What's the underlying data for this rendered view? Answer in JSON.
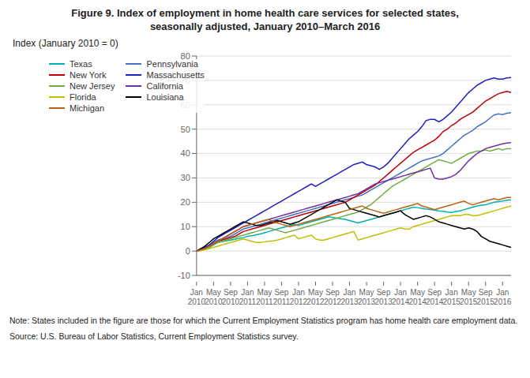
{
  "chart_data": {
    "type": "line",
    "title": "Figure 9. Index of employment in home health care services for selected states,",
    "subtitle": "seasonally adjusted, January 2010–March 2016",
    "ylabel": "Index (January 2010 = 0)",
    "annotations": [
      "Note: States included in the figure are those for which the Current Employment Statistics program has home health care employment data.",
      "Source: U.S. Bureau of Labor Statistics, Current Employment Statistics survey."
    ],
    "categories": [
      "Jan 2010",
      null,
      null,
      null,
      "May 2010",
      null,
      null,
      null,
      "Sep 2010",
      null,
      null,
      null,
      "Jan 2011",
      null,
      null,
      null,
      "May 2011",
      null,
      null,
      null,
      "Sep 2011",
      null,
      null,
      null,
      "Jan 2012",
      null,
      null,
      null,
      "May 2012",
      null,
      null,
      null,
      "Sep 2012",
      null,
      null,
      null,
      "Jan 2013",
      null,
      null,
      null,
      "May 2013",
      null,
      null,
      null,
      "Sep 2013",
      null,
      null,
      null,
      "Jan 2014",
      null,
      null,
      null,
      "May 2014",
      null,
      null,
      null,
      "Sep 2014",
      null,
      null,
      null,
      "Jan 2015",
      null,
      null,
      null,
      "May 2015",
      null,
      null,
      null,
      "Sep 2015",
      null,
      null,
      null,
      "Jan 2016",
      null,
      null
    ],
    "ylim": [
      -10,
      80
    ],
    "yticks": [
      -10,
      0,
      10,
      20,
      30,
      40,
      50,
      60,
      70,
      80
    ],
    "grid": true,
    "legend": "upper left",
    "series": [
      {
        "name": "Texas",
        "color": "#00b0b0",
        "values": [
          0.0,
          0.5,
          1.0,
          1.5,
          2.5,
          3.5,
          3.8,
          4.2,
          4.5,
          4.8,
          5.2,
          5.5,
          6.0,
          6.3,
          6.7,
          7.0,
          7.5,
          8.0,
          8.5,
          9.0,
          9.5,
          10.0,
          10.5,
          11.0,
          10.5,
          11.0,
          11.5,
          12.0,
          12.5,
          13.0,
          13.5,
          14.0,
          13.8,
          13.5,
          13.2,
          13.0,
          12.5,
          12.0,
          11.5,
          12.0,
          12.5,
          13.0,
          13.5,
          14.0,
          14.5,
          15.0,
          15.5,
          16.0,
          16.5,
          17.0,
          17.5,
          18.0,
          17.8,
          17.5,
          17.2,
          17.0,
          16.8,
          16.5,
          16.3,
          16.0,
          15.8,
          16.2,
          16.5,
          17.0,
          17.5,
          18.0,
          18.5,
          18.8,
          19.0,
          19.5,
          20.0,
          20.3,
          20.5,
          20.8,
          21.0
        ]
      },
      {
        "name": "Pennsylvania",
        "color": "#4472c4",
        "values": [
          0.0,
          0.5,
          1.0,
          2.0,
          3.5,
          4.5,
          5.0,
          5.5,
          6.0,
          7.0,
          8.0,
          9.0,
          9.5,
          10.0,
          10.5,
          11.0,
          11.5,
          12.0,
          12.5,
          13.0,
          13.5,
          14.0,
          14.5,
          15.0,
          15.5,
          16.0,
          16.5,
          17.0,
          17.5,
          18.0,
          18.5,
          19.0,
          19.5,
          20.0,
          20.5,
          21.0,
          21.5,
          22.0,
          22.5,
          23.0,
          24.0,
          25.0,
          26.0,
          27.0,
          28.0,
          29.0,
          30.0,
          31.0,
          32.0,
          33.0,
          34.0,
          35.0,
          36.0,
          37.0,
          37.5,
          38.0,
          38.5,
          39.0,
          40.0,
          41.5,
          43.0,
          44.5,
          46.0,
          47.5,
          48.5,
          49.5,
          51.0,
          52.0,
          53.0,
          54.5,
          55.8,
          56.3,
          56.0,
          56.5,
          56.8
        ]
      },
      {
        "name": "New York",
        "color": "#c00000",
        "values": [
          0.0,
          0.5,
          1.0,
          2.0,
          3.0,
          4.0,
          4.5,
          5.0,
          5.5,
          6.0,
          7.0,
          8.0,
          8.5,
          9.0,
          9.5,
          10.0,
          10.5,
          11.0,
          11.5,
          12.0,
          12.5,
          13.0,
          13.5,
          14.0,
          14.5,
          15.0,
          15.5,
          16.0,
          16.5,
          17.0,
          17.5,
          18.0,
          18.5,
          19.0,
          19.5,
          20.0,
          21.0,
          22.0,
          23.0,
          24.0,
          25.0,
          26.0,
          27.0,
          28.5,
          30.0,
          31.5,
          33.0,
          34.5,
          36.0,
          37.5,
          39.0,
          40.5,
          41.5,
          42.5,
          43.5,
          44.5,
          45.5,
          47.0,
          49.0,
          50.0,
          51.5,
          52.5,
          54.0,
          55.0,
          56.0,
          57.0,
          58.5,
          60.0,
          61.5,
          62.5,
          63.5,
          64.5,
          65.0,
          65.5,
          65.0
        ]
      },
      {
        "name": "Massachusetts",
        "color": "#1f1fbf",
        "values": [
          0.0,
          0.8,
          1.5,
          2.5,
          4.0,
          5.5,
          6.5,
          7.5,
          8.5,
          9.5,
          10.5,
          11.5,
          12.5,
          13.5,
          14.5,
          15.5,
          16.5,
          17.5,
          18.5,
          19.5,
          20.5,
          21.5,
          22.5,
          23.5,
          24.5,
          25.5,
          26.5,
          27.5,
          26.5,
          27.5,
          28.5,
          29.5,
          30.5,
          31.5,
          32.5,
          33.5,
          34.5,
          35.5,
          36.0,
          36.5,
          35.5,
          35.0,
          34.5,
          33.5,
          34.5,
          36.0,
          38.0,
          40.0,
          42.0,
          44.0,
          46.0,
          47.5,
          49.0,
          51.0,
          53.5,
          54.0,
          54.0,
          53.0,
          54.0,
          55.5,
          57.0,
          59.0,
          61.0,
          63.0,
          65.0,
          66.5,
          68.0,
          69.0,
          70.0,
          70.5,
          71.0,
          70.5,
          70.5,
          71.0,
          71.2
        ]
      },
      {
        "name": "New Jersey",
        "color": "#70ad47",
        "values": [
          0.0,
          0.3,
          0.8,
          1.5,
          2.5,
          3.5,
          4.0,
          4.5,
          5.0,
          5.5,
          6.0,
          6.5,
          7.0,
          7.5,
          8.0,
          8.5,
          9.0,
          9.5,
          9.0,
          8.5,
          8.0,
          7.5,
          8.0,
          8.5,
          9.0,
          9.5,
          10.0,
          10.5,
          11.0,
          11.5,
          12.0,
          12.5,
          13.0,
          13.5,
          14.0,
          14.5,
          15.0,
          15.5,
          16.0,
          17.0,
          18.0,
          19.0,
          20.5,
          22.0,
          23.5,
          25.0,
          26.5,
          27.5,
          28.5,
          29.5,
          30.5,
          31.5,
          32.5,
          33.5,
          34.5,
          35.5,
          36.5,
          37.5,
          37.0,
          36.5,
          36.0,
          37.0,
          38.0,
          39.0,
          40.0,
          40.5,
          41.0,
          41.0,
          41.5,
          41.0,
          41.5,
          42.0,
          41.5,
          42.0,
          42.0
        ]
      },
      {
        "name": "California",
        "color": "#7030a0",
        "values": [
          0.0,
          0.5,
          1.0,
          2.0,
          3.0,
          4.0,
          5.0,
          6.0,
          7.0,
          8.0,
          9.0,
          10.0,
          10.5,
          11.0,
          11.5,
          12.0,
          12.5,
          13.0,
          13.5,
          14.0,
          14.5,
          15.0,
          15.5,
          16.0,
          16.5,
          17.0,
          17.5,
          18.0,
          18.5,
          19.0,
          19.5,
          20.0,
          20.5,
          21.0,
          21.5,
          22.0,
          22.5,
          23.0,
          23.5,
          24.5,
          25.5,
          26.5,
          27.5,
          28.0,
          28.5,
          29.0,
          29.5,
          30.0,
          30.5,
          31.0,
          31.5,
          32.0,
          32.5,
          33.0,
          33.5,
          34.0,
          30.0,
          29.5,
          29.5,
          30.0,
          30.5,
          31.5,
          33.0,
          35.0,
          37.0,
          38.5,
          40.0,
          41.0,
          42.0,
          42.5,
          43.0,
          43.5,
          44.0,
          44.3,
          44.5
        ]
      },
      {
        "name": "Florida",
        "color": "#bfbf00",
        "values": [
          0.0,
          0.2,
          0.5,
          1.0,
          1.5,
          2.0,
          2.5,
          3.0,
          3.5,
          4.0,
          4.5,
          5.0,
          4.5,
          4.0,
          3.5,
          3.5,
          3.8,
          4.0,
          4.2,
          4.5,
          5.0,
          5.5,
          6.0,
          6.5,
          5.0,
          5.5,
          6.0,
          6.5,
          5.0,
          4.5,
          4.5,
          5.0,
          5.5,
          6.0,
          6.5,
          7.0,
          7.5,
          8.0,
          4.5,
          5.0,
          5.5,
          6.0,
          6.5,
          7.0,
          7.5,
          8.0,
          8.5,
          9.0,
          9.5,
          9.0,
          9.0,
          10.0,
          10.5,
          11.0,
          11.5,
          12.0,
          12.5,
          13.0,
          13.5,
          14.0,
          14.5,
          14.5,
          14.5,
          15.0,
          15.0,
          14.5,
          14.5,
          15.0,
          15.5,
          16.0,
          16.5,
          17.0,
          17.5,
          18.0,
          18.5
        ]
      },
      {
        "name": "Louisiana",
        "color": "#000000",
        "values": [
          0.0,
          1.0,
          2.0,
          3.5,
          5.0,
          6.0,
          7.0,
          8.0,
          9.0,
          10.0,
          11.0,
          12.0,
          11.5,
          11.0,
          10.5,
          10.5,
          11.0,
          11.5,
          12.0,
          12.5,
          12.0,
          11.5,
          11.0,
          11.5,
          12.0,
          13.0,
          14.0,
          15.0,
          16.0,
          17.0,
          18.0,
          19.0,
          20.0,
          21.0,
          20.5,
          20.0,
          17.5,
          17.0,
          16.5,
          16.0,
          15.5,
          15.0,
          14.5,
          14.0,
          14.5,
          15.0,
          15.5,
          16.0,
          16.5,
          15.0,
          14.0,
          13.0,
          13.5,
          14.0,
          14.5,
          14.0,
          13.0,
          12.0,
          11.5,
          11.0,
          10.5,
          10.0,
          9.5,
          9.0,
          9.5,
          9.0,
          8.0,
          6.0,
          5.0,
          4.0,
          3.5,
          3.0,
          2.5,
          2.0,
          1.5
        ]
      },
      {
        "name": "Michigan",
        "color": "#bf6010",
        "values": [
          0.0,
          0.5,
          1.0,
          2.0,
          3.0,
          4.0,
          5.0,
          6.0,
          7.0,
          8.0,
          9.0,
          10.0,
          10.5,
          11.0,
          11.5,
          12.0,
          12.5,
          13.0,
          12.0,
          11.5,
          11.0,
          10.5,
          10.0,
          10.5,
          11.0,
          11.5,
          12.0,
          12.5,
          13.0,
          13.5,
          14.0,
          14.5,
          15.0,
          15.5,
          16.0,
          16.5,
          17.0,
          17.5,
          18.0,
          18.5,
          17.5,
          17.0,
          16.5,
          16.0,
          15.5,
          16.0,
          16.5,
          17.0,
          17.5,
          18.0,
          18.5,
          19.0,
          19.5,
          18.5,
          18.0,
          17.5,
          17.0,
          17.5,
          18.0,
          18.5,
          19.0,
          19.5,
          20.0,
          20.5,
          19.5,
          19.0,
          19.5,
          20.0,
          20.5,
          21.0,
          21.5,
          21.0,
          21.5,
          22.0,
          22.0
        ]
      }
    ]
  }
}
